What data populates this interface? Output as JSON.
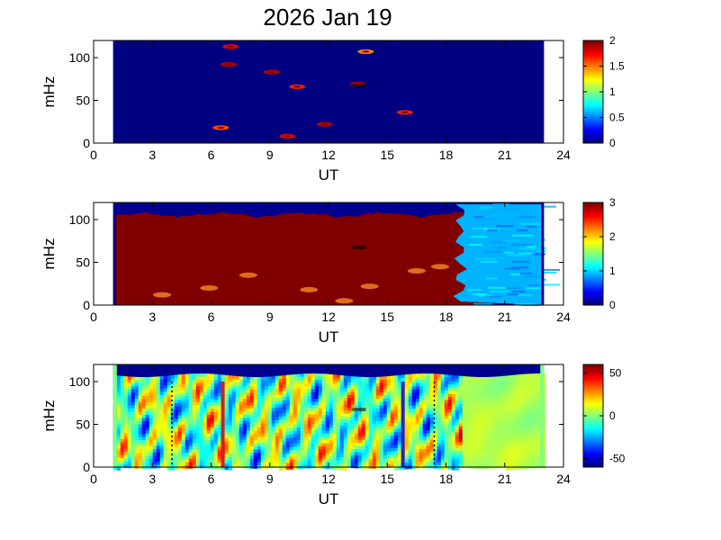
{
  "chart_data": {
    "title": "2026 Jan 19",
    "type": "heatmap",
    "panels": [
      {
        "id": "top",
        "xlabel": "UT",
        "ylabel": "mHz",
        "xlim": [
          0,
          24
        ],
        "ylim": [
          0,
          120
        ],
        "xticks": [
          "0",
          "3",
          "6",
          "9",
          "12",
          "15",
          "18",
          "21",
          "24"
        ],
        "yticks": [
          "0",
          "50",
          "100"
        ],
        "data_x_range": [
          1,
          23
        ],
        "colorbar": {
          "min": 0,
          "max": 2,
          "ticks": [
            "0",
            "0.5",
            "1",
            "1.5",
            "2"
          ]
        },
        "background_value": 0,
        "features": [
          {
            "t": 6.9,
            "f": 92,
            "value": 1.9
          },
          {
            "t": 9.1,
            "f": 83,
            "value": 1.9
          },
          {
            "t": 11.8,
            "f": 22,
            "value": 1.9
          },
          {
            "t": 13.5,
            "f": 69,
            "value": 1.9
          },
          {
            "t": 7.0,
            "f": 113,
            "value": 1.8
          },
          {
            "t": 10.4,
            "f": 66,
            "value": 1.7
          },
          {
            "t": 9.9,
            "f": 8,
            "value": 1.8
          },
          {
            "t": 6.5,
            "f": 18,
            "value": 1.6
          },
          {
            "t": 15.9,
            "f": 36,
            "value": 1.7
          },
          {
            "t": 13.9,
            "f": 107,
            "value": 1.5
          }
        ]
      },
      {
        "id": "middle",
        "xlabel": "UT",
        "ylabel": "mHz",
        "xlim": [
          0,
          24
        ],
        "ylim": [
          0,
          120
        ],
        "xticks": [
          "0",
          "3",
          "6",
          "9",
          "12",
          "15",
          "18",
          "21",
          "24"
        ],
        "yticks": [
          "0",
          "50",
          "100"
        ],
        "data_x_range": [
          1,
          23
        ],
        "colorbar": {
          "min": 0,
          "max": 3,
          "ticks": [
            "0",
            "1",
            "2",
            "3"
          ]
        },
        "saturated_region": {
          "t_start": 1,
          "t_end": 19,
          "value": 3
        },
        "quiet_region": {
          "t_start": 19,
          "t_end": 23,
          "value": 0.9
        }
      },
      {
        "id": "bottom",
        "xlabel": "UT",
        "ylabel": "mHz",
        "xlim": [
          0,
          24
        ],
        "ylim": [
          0,
          120
        ],
        "xticks": [
          "0",
          "3",
          "6",
          "9",
          "12",
          "15",
          "18",
          "21",
          "24"
        ],
        "yticks": [
          "0",
          "50",
          "100"
        ],
        "data_x_range": [
          1,
          23
        ],
        "colorbar": {
          "min": -60,
          "max": 60,
          "ticks": [
            "-50",
            "0",
            "50"
          ]
        },
        "markers": [
          {
            "t": 6.6,
            "color": "#d02020"
          },
          {
            "t": 15.8,
            "color": "#3020c0"
          }
        ],
        "dotted_lines": [
          4.0,
          17.4
        ]
      }
    ],
    "marker_label": "xxxxxxxx"
  }
}
